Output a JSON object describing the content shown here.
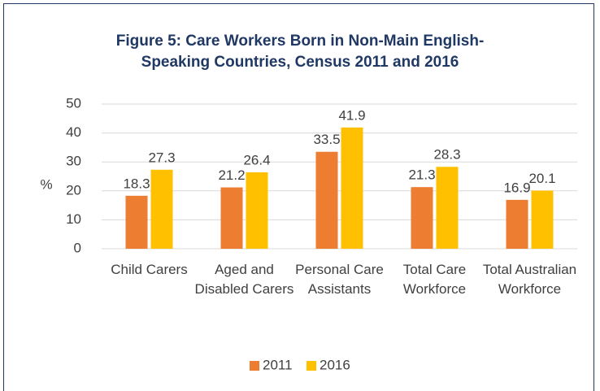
{
  "chart_data": {
    "type": "bar",
    "title": "Figure 5: Care Workers Born in Non-Main English-Speaking Countries, Census 2011 and 2016",
    "ylabel": "%",
    "categories": [
      "Child Carers",
      "Aged and Disabled Carers",
      "Personal Care Assistants",
      "Total Care Workforce",
      "Total Australian Workforce"
    ],
    "series": [
      {
        "name": "2011",
        "color": "#ed7d31",
        "values": [
          18.3,
          21.2,
          33.5,
          21.3,
          16.9
        ]
      },
      {
        "name": "2016",
        "color": "#ffc000",
        "values": [
          27.3,
          26.4,
          41.9,
          28.3,
          20.1
        ]
      }
    ],
    "ylim": [
      0,
      50
    ],
    "yticks": [
      0,
      10,
      20,
      30,
      40,
      50
    ],
    "grid": true,
    "legend": "bottom"
  }
}
